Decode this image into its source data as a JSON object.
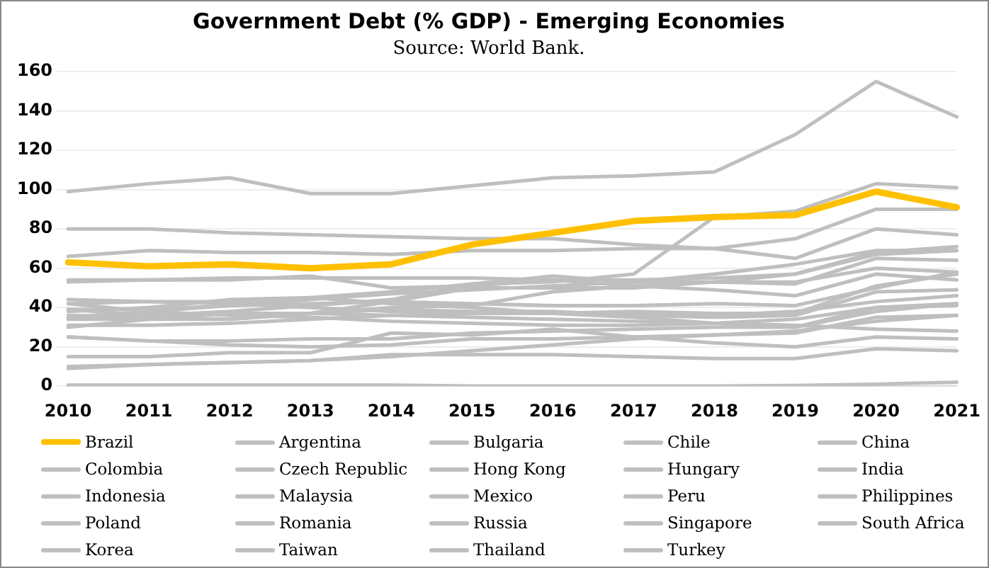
{
  "chart_data": {
    "type": "line",
    "title": "Government Debt (% GDP) - Emerging Economies",
    "subtitle": "Source: World Bank.",
    "categories": [
      "2010",
      "2011",
      "2012",
      "2013",
      "2014",
      "2015",
      "2016",
      "2017",
      "2018",
      "2019",
      "2020",
      "2021"
    ],
    "ylim": [
      0,
      160
    ],
    "yticks": [
      0,
      20,
      40,
      60,
      80,
      100,
      120,
      140,
      160
    ],
    "grid": "y",
    "legend": "bottom",
    "marker": "none",
    "line_style": "solid",
    "series": [
      {
        "name": "Brazil",
        "color": "#ffc000",
        "values": [
          63,
          61,
          62,
          60,
          62,
          72,
          78,
          84,
          86,
          87,
          99,
          91
        ]
      },
      {
        "name": "Argentina",
        "color": "#bfbfbf",
        "values": [
          39,
          36,
          38,
          41,
          44,
          52,
          53,
          57,
          86,
          89,
          103,
          101
        ]
      },
      {
        "name": "Bulgaria",
        "color": "#bfbfbf",
        "values": [
          15,
          15,
          17,
          17,
          27,
          26,
          29,
          25,
          22,
          20,
          25,
          24
        ]
      },
      {
        "name": "Chile",
        "color": "#bfbfbf",
        "values": [
          9,
          11,
          12,
          13,
          15,
          18,
          21,
          24,
          26,
          28,
          33,
          36
        ]
      },
      {
        "name": "China",
        "color": "#bfbfbf",
        "values": [
          34,
          34,
          34,
          37,
          40,
          41,
          48,
          51,
          53,
          57,
          68,
          71
        ]
      },
      {
        "name": "Colombia",
        "color": "#bfbfbf",
        "values": [
          36,
          35,
          34,
          37,
          43,
          50,
          50,
          50,
          53,
          52,
          65,
          64
        ]
      },
      {
        "name": "Czech Republic",
        "color": "#bfbfbf",
        "values": [
          38,
          40,
          44,
          45,
          42,
          40,
          37,
          35,
          32,
          30,
          38,
          42
        ]
      },
      {
        "name": "Hong Kong",
        "color": "#bfbfbf",
        "values": [
          0.5,
          0.5,
          0.5,
          0.5,
          0.5,
          0.1,
          0.1,
          0.1,
          0.1,
          0.3,
          1,
          2
        ]
      },
      {
        "name": "Hungary",
        "color": "#bfbfbf",
        "values": [
          80,
          80,
          78,
          77,
          76,
          75,
          75,
          72,
          70,
          65,
          80,
          77
        ]
      },
      {
        "name": "India",
        "color": "#bfbfbf",
        "values": [
          66,
          69,
          68,
          68,
          67,
          69,
          69,
          70,
          70,
          75,
          90,
          90
        ]
      },
      {
        "name": "Indonesia",
        "color": "#bfbfbf",
        "values": [
          25,
          23,
          23,
          24,
          24,
          27,
          28,
          29,
          30,
          30,
          40,
          41
        ]
      },
      {
        "name": "Malaysia",
        "color": "#bfbfbf",
        "values": [
          53,
          54,
          55,
          55,
          55,
          55,
          54,
          54,
          55,
          57,
          67,
          69
        ]
      },
      {
        "name": "Mexico",
        "color": "#bfbfbf",
        "values": [
          42,
          43,
          43,
          45,
          48,
          52,
          56,
          53,
          53,
          53,
          60,
          58
        ]
      },
      {
        "name": "Peru",
        "color": "#bfbfbf",
        "values": [
          25,
          23,
          21,
          20,
          21,
          24,
          24,
          25,
          26,
          27,
          35,
          36
        ]
      },
      {
        "name": "Philippines",
        "color": "#bfbfbf",
        "values": [
          44,
          43,
          42,
          40,
          38,
          37,
          37,
          38,
          37,
          37,
          51,
          57
        ]
      },
      {
        "name": "Poland",
        "color": "#bfbfbf",
        "values": [
          54,
          54,
          54,
          56,
          50,
          51,
          54,
          51,
          49,
          46,
          57,
          54
        ]
      },
      {
        "name": "Romania",
        "color": "#bfbfbf",
        "values": [
          30,
          34,
          37,
          37,
          39,
          38,
          38,
          36,
          35,
          36,
          48,
          49
        ]
      },
      {
        "name": "Russia",
        "color": "#bfbfbf",
        "values": [
          10,
          11,
          12,
          13,
          16,
          16,
          16,
          15,
          14,
          14,
          19,
          18
        ]
      },
      {
        "name": "Singapore",
        "color": "#bfbfbf",
        "values": [
          99,
          103,
          106,
          98,
          98,
          102,
          106,
          107,
          109,
          128,
          155,
          137
        ]
      },
      {
        "name": "South Africa",
        "color": "#bfbfbf",
        "values": [
          35,
          38,
          41,
          44,
          47,
          49,
          51,
          53,
          57,
          62,
          69,
          69
        ]
      },
      {
        "name": "Korea",
        "color": "#bfbfbf",
        "values": [
          31,
          31,
          32,
          34,
          36,
          37,
          37,
          37,
          36,
          38,
          43,
          46
        ]
      },
      {
        "name": "Taiwan",
        "color": "#bfbfbf",
        "values": [
          35,
          37,
          37,
          37,
          36,
          35,
          34,
          33,
          32,
          31,
          29,
          28
        ]
      },
      {
        "name": "Thailand",
        "color": "#bfbfbf",
        "values": [
          39,
          39,
          41,
          42,
          43,
          42,
          41,
          41,
          42,
          41,
          50,
          58
        ]
      },
      {
        "name": "Turkey",
        "color": "#bfbfbf",
        "values": [
          42,
          38,
          36,
          35,
          33,
          32,
          31,
          31,
          32,
          34,
          40,
          42
        ]
      }
    ]
  }
}
